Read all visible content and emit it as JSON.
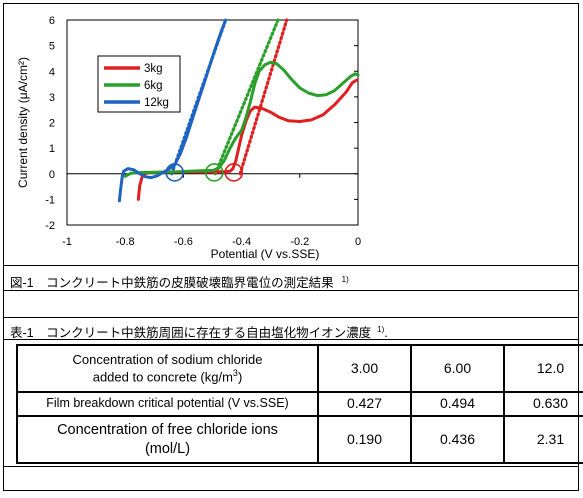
{
  "figure": {
    "caption": "図-1　コンクリート中鉄筋の皮膜破壊臨界電位の測定結果",
    "caption_ref": "1)"
  },
  "table_section": {
    "caption": "表-1　コンクリート中鉄筋周囲に存在する自由塩化物イオン濃度",
    "caption_ref": "1)",
    "caption_suffix": "."
  },
  "table": {
    "rows": [
      {
        "label_line1": "Concentration of sodium chloride",
        "label_line2": "added to concrete (kg/m",
        "label_sup": "3",
        "label_end": ")",
        "values": [
          "3.00",
          "6.00",
          "12.0"
        ]
      },
      {
        "label_line1": "Film breakdown critical potential  (V vs.SSE)",
        "values": [
          "0.427",
          "0.494",
          "0.630"
        ]
      },
      {
        "label_line1": "Concentration of free chloride ions",
        "label_line2": "(mol/L)",
        "values": [
          "0.190",
          "0.436",
          "2.31"
        ]
      }
    ]
  },
  "chart_data": {
    "type": "line",
    "title": "",
    "xlabel": "Potential  (V vs.SSE)",
    "ylabel": "Current density (μA/cm²)",
    "xlim": [
      -1,
      0
    ],
    "ylim": [
      -2,
      6
    ],
    "xticks": [
      "-1",
      "-0.8",
      "-0.6",
      "-0.4",
      "-0.2",
      "0"
    ],
    "yticks": [
      "-2",
      "-1",
      "0",
      "1",
      "2",
      "3",
      "4",
      "5",
      "6"
    ],
    "grid": false,
    "legend_position": "upper-left",
    "series": [
      {
        "name": "3kg",
        "color": "#e02020",
        "points": [
          [
            -0.755,
            -1.0
          ],
          [
            -0.75,
            -0.45
          ],
          [
            -0.74,
            -0.05
          ],
          [
            -0.72,
            0.05
          ],
          [
            -0.68,
            0.06
          ],
          [
            -0.62,
            0.07
          ],
          [
            -0.56,
            0.07
          ],
          [
            -0.5,
            0.08
          ],
          [
            -0.46,
            0.08
          ],
          [
            -0.44,
            0.1
          ],
          [
            -0.43,
            0.2
          ],
          [
            -0.42,
            0.5
          ],
          [
            -0.41,
            1.0
          ],
          [
            -0.4,
            1.5
          ],
          [
            -0.385,
            2.05
          ],
          [
            -0.37,
            2.45
          ],
          [
            -0.355,
            2.6
          ],
          [
            -0.33,
            2.55
          ],
          [
            -0.3,
            2.4
          ],
          [
            -0.27,
            2.2
          ],
          [
            -0.24,
            2.07
          ],
          [
            -0.2,
            2.04
          ],
          [
            -0.16,
            2.1
          ],
          [
            -0.12,
            2.3
          ],
          [
            -0.08,
            2.7
          ],
          [
            -0.04,
            3.2
          ],
          [
            -0.02,
            3.55
          ],
          [
            -0.005,
            3.65
          ]
        ],
        "tangent": [
          [
            -0.405,
            0.0
          ],
          [
            -0.245,
            6.0
          ]
        ]
      },
      {
        "name": "6kg",
        "color": "#2aa02a",
        "points": [
          [
            -0.8,
            -0.1
          ],
          [
            -0.78,
            0.02
          ],
          [
            -0.74,
            0.05
          ],
          [
            -0.68,
            0.06
          ],
          [
            -0.62,
            0.08
          ],
          [
            -0.58,
            0.1
          ],
          [
            -0.54,
            0.12
          ],
          [
            -0.5,
            0.13
          ],
          [
            -0.48,
            0.2
          ],
          [
            -0.46,
            0.5
          ],
          [
            -0.44,
            1.0
          ],
          [
            -0.42,
            1.4
          ],
          [
            -0.41,
            1.55
          ],
          [
            -0.4,
            1.7
          ],
          [
            -0.385,
            2.2
          ],
          [
            -0.37,
            2.8
          ],
          [
            -0.355,
            3.5
          ],
          [
            -0.34,
            4.0
          ],
          [
            -0.32,
            4.25
          ],
          [
            -0.3,
            4.35
          ],
          [
            -0.28,
            4.3
          ],
          [
            -0.255,
            4.05
          ],
          [
            -0.23,
            3.7
          ],
          [
            -0.2,
            3.35
          ],
          [
            -0.17,
            3.15
          ],
          [
            -0.14,
            3.05
          ],
          [
            -0.11,
            3.08
          ],
          [
            -0.08,
            3.25
          ],
          [
            -0.05,
            3.55
          ],
          [
            -0.025,
            3.8
          ],
          [
            -0.01,
            3.9
          ],
          [
            0.0,
            3.85
          ]
        ],
        "tangent": [
          [
            -0.49,
            0.0
          ],
          [
            -0.275,
            6.0
          ]
        ]
      },
      {
        "name": "12kg",
        "color": "#1f63c0",
        "points": [
          [
            -0.82,
            -1.05
          ],
          [
            -0.815,
            -0.55
          ],
          [
            -0.81,
            -0.1
          ],
          [
            -0.805,
            0.1
          ],
          [
            -0.79,
            0.2
          ],
          [
            -0.77,
            0.15
          ],
          [
            -0.75,
            0.0
          ],
          [
            -0.73,
            -0.12
          ],
          [
            -0.71,
            -0.15
          ],
          [
            -0.69,
            -0.08
          ],
          [
            -0.67,
            0.05
          ],
          [
            -0.65,
            0.18
          ],
          [
            -0.63,
            0.35
          ],
          [
            -0.61,
            0.8
          ],
          [
            -0.59,
            1.4
          ],
          [
            -0.57,
            2.1
          ],
          [
            -0.55,
            2.8
          ],
          [
            -0.53,
            3.5
          ],
          [
            -0.51,
            4.2
          ],
          [
            -0.49,
            4.9
          ],
          [
            -0.47,
            5.55
          ],
          [
            -0.455,
            6.0
          ]
        ],
        "tangent": [
          [
            -0.64,
            0.0
          ],
          [
            -0.455,
            6.0
          ]
        ]
      }
    ],
    "markers": [
      {
        "series": "3kg",
        "x": -0.427,
        "y": 0.05,
        "color": "#e02020"
      },
      {
        "series": "6kg",
        "x": -0.494,
        "y": 0.05,
        "color": "#2aa02a"
      },
      {
        "series": "12kg",
        "x": -0.63,
        "y": 0.05,
        "color": "#1f63c0"
      }
    ]
  }
}
